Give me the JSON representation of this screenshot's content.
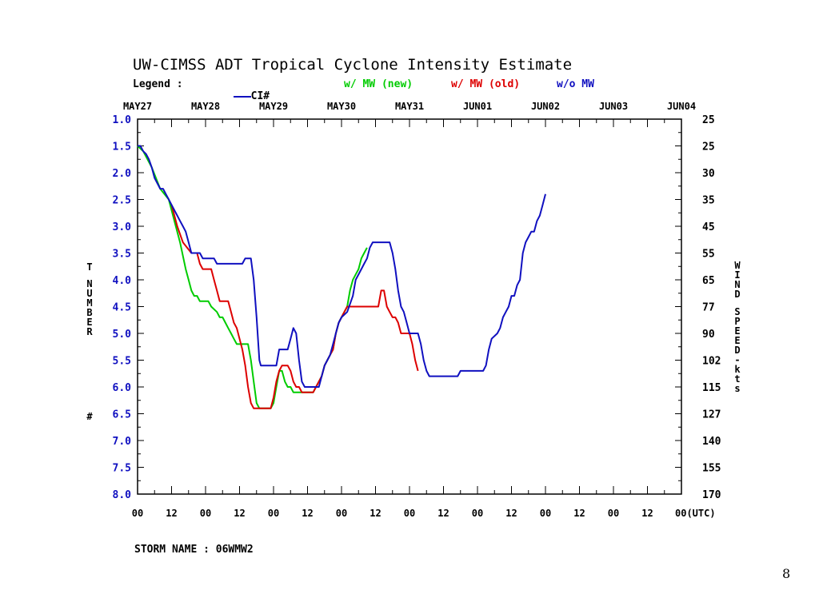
{
  "title": "UW-CIMSS ADT Tropical Cyclone Intensity Estimate",
  "legend": {
    "label": "Legend :",
    "entries": [
      {
        "text": "CI#",
        "color": "#1010c0"
      },
      {
        "text": "w/ MW (new)",
        "color": "#00cc00"
      },
      {
        "text": "w/ MW (old)",
        "color": "#dd0000"
      },
      {
        "text": "w/o MW",
        "color": "#1010c0"
      }
    ]
  },
  "storm_name": "STORM NAME : 06WMW2",
  "page_number": "8",
  "chart_data": {
    "type": "line",
    "title": "UW-CIMSS ADT Tropical Cyclone Intensity Estimate",
    "ylabel_left": "T NUMBER #",
    "ylabel_right": "WIND SPEED-kts",
    "xlabel": "(UTC)",
    "top_dates": [
      "MAY27",
      "MAY28",
      "MAY29",
      "MAY30",
      "MAY31",
      "JUN01",
      "JUN02",
      "JUN03",
      "JUN04"
    ],
    "bottom_hours": [
      "00",
      "12",
      "00",
      "12",
      "00",
      "12",
      "00",
      "12",
      "00",
      "12",
      "00",
      "12",
      "00",
      "12",
      "00",
      "12",
      "00(UTC)"
    ],
    "xlim_hours": [
      0,
      192
    ],
    "ylim": [
      1.0,
      8.0
    ],
    "y_inverted": true,
    "left_ticks": [
      "1.0",
      "1.5",
      "2.0",
      "2.5",
      "3.0",
      "3.5",
      "4.0",
      "4.5",
      "5.0",
      "5.5",
      "6.0",
      "6.5",
      "7.0",
      "7.5",
      "8.0"
    ],
    "right_ticks": [
      "25",
      "25",
      "30",
      "35",
      "45",
      "55",
      "65",
      "77",
      "90",
      "102",
      "115",
      "127",
      "140",
      "155",
      "170"
    ],
    "series": [
      {
        "name": "w/o MW",
        "color": "#1010c0",
        "points": [
          [
            0,
            1.5
          ],
          [
            1,
            1.5
          ],
          [
            2,
            1.6
          ],
          [
            3,
            1.65
          ],
          [
            4,
            1.75
          ],
          [
            5,
            1.9
          ],
          [
            6,
            2.1
          ],
          [
            7,
            2.2
          ],
          [
            8,
            2.3
          ],
          [
            9,
            2.3
          ],
          [
            10,
            2.4
          ],
          [
            11,
            2.5
          ],
          [
            12,
            2.6
          ],
          [
            13,
            2.7
          ],
          [
            14,
            2.8
          ],
          [
            15,
            2.9
          ],
          [
            16,
            3.0
          ],
          [
            17,
            3.1
          ],
          [
            18,
            3.3
          ],
          [
            19,
            3.5
          ],
          [
            22,
            3.5
          ],
          [
            23,
            3.6
          ],
          [
            27,
            3.6
          ],
          [
            28,
            3.7
          ],
          [
            37,
            3.7
          ],
          [
            38,
            3.6
          ],
          [
            40,
            3.6
          ],
          [
            41,
            4.0
          ],
          [
            42,
            4.7
          ],
          [
            43,
            5.5
          ],
          [
            43.5,
            5.6
          ],
          [
            49,
            5.6
          ],
          [
            50,
            5.3
          ],
          [
            53,
            5.3
          ],
          [
            54,
            5.1
          ],
          [
            55,
            4.9
          ],
          [
            56,
            5.0
          ],
          [
            57,
            5.5
          ],
          [
            58,
            5.9
          ],
          [
            59,
            6.0
          ],
          [
            64,
            6.0
          ],
          [
            65,
            5.8
          ],
          [
            66,
            5.6
          ],
          [
            67,
            5.5
          ],
          [
            68,
            5.4
          ],
          [
            69,
            5.2
          ],
          [
            70,
            5.0
          ],
          [
            71,
            4.8
          ],
          [
            72,
            4.7
          ],
          [
            74,
            4.6
          ],
          [
            76,
            4.3
          ],
          [
            77,
            4.0
          ],
          [
            79,
            3.8
          ],
          [
            80,
            3.7
          ],
          [
            81,
            3.6
          ],
          [
            82,
            3.4
          ],
          [
            83,
            3.3
          ],
          [
            89,
            3.3
          ],
          [
            90,
            3.5
          ],
          [
            91,
            3.8
          ],
          [
            92,
            4.2
          ],
          [
            93,
            4.5
          ],
          [
            94,
            4.6
          ],
          [
            95,
            4.8
          ],
          [
            96,
            5.0
          ],
          [
            99,
            5.0
          ],
          [
            100,
            5.2
          ],
          [
            101,
            5.5
          ],
          [
            102,
            5.7
          ],
          [
            103,
            5.8
          ],
          [
            113,
            5.8
          ],
          [
            114,
            5.7
          ],
          [
            122,
            5.7
          ],
          [
            123,
            5.6
          ],
          [
            124,
            5.3
          ],
          [
            125,
            5.1
          ],
          [
            127,
            5.0
          ],
          [
            128,
            4.9
          ],
          [
            129,
            4.7
          ],
          [
            130,
            4.6
          ],
          [
            131,
            4.5
          ],
          [
            132,
            4.3
          ],
          [
            133,
            4.3
          ],
          [
            134,
            4.1
          ],
          [
            135,
            4.0
          ],
          [
            136,
            3.5
          ],
          [
            137,
            3.3
          ],
          [
            138,
            3.2
          ],
          [
            139,
            3.1
          ],
          [
            140,
            3.1
          ],
          [
            141,
            2.9
          ],
          [
            142,
            2.8
          ],
          [
            143,
            2.6
          ],
          [
            144,
            2.4
          ]
        ]
      },
      {
        "name": "w/ MW (new)",
        "color": "#00cc00",
        "points": [
          [
            0,
            1.5
          ],
          [
            2,
            1.6
          ],
          [
            5,
            1.9
          ],
          [
            8,
            2.3
          ],
          [
            11,
            2.5
          ],
          [
            13,
            2.9
          ],
          [
            15,
            3.3
          ],
          [
            17,
            3.8
          ],
          [
            18,
            4.0
          ],
          [
            19,
            4.2
          ],
          [
            20,
            4.3
          ],
          [
            21,
            4.3
          ],
          [
            22,
            4.4
          ],
          [
            25,
            4.4
          ],
          [
            26,
            4.5
          ],
          [
            28,
            4.6
          ],
          [
            29,
            4.7
          ],
          [
            30,
            4.7
          ],
          [
            31,
            4.8
          ],
          [
            32,
            4.9
          ],
          [
            33,
            5.0
          ],
          [
            34,
            5.1
          ],
          [
            35,
            5.2
          ],
          [
            39,
            5.2
          ],
          [
            40,
            5.5
          ],
          [
            41,
            5.9
          ],
          [
            42,
            6.3
          ],
          [
            43,
            6.4
          ],
          [
            47,
            6.4
          ],
          [
            48,
            6.3
          ],
          [
            49,
            6.0
          ],
          [
            50,
            5.7
          ],
          [
            51,
            5.7
          ],
          [
            52,
            5.9
          ],
          [
            53,
            6.0
          ],
          [
            54,
            6.0
          ],
          [
            55,
            6.1
          ],
          [
            56,
            6.1
          ],
          [
            62,
            6.1
          ],
          [
            63,
            6.0
          ],
          [
            64,
            5.9
          ],
          [
            65,
            5.8
          ],
          [
            66,
            5.6
          ],
          [
            67,
            5.5
          ],
          [
            68,
            5.4
          ],
          [
            69,
            5.3
          ],
          [
            70,
            5.0
          ],
          [
            71,
            4.8
          ],
          [
            72,
            4.7
          ],
          [
            74,
            4.5
          ],
          [
            75,
            4.2
          ],
          [
            76,
            4.0
          ],
          [
            77,
            3.9
          ],
          [
            78,
            3.8
          ],
          [
            79,
            3.6
          ],
          [
            80,
            3.5
          ],
          [
            81,
            3.4
          ]
        ]
      },
      {
        "name": "w/ MW (old)",
        "color": "#dd0000",
        "points": [
          [
            12,
            2.6
          ],
          [
            14,
            3.0
          ],
          [
            16,
            3.3
          ],
          [
            19,
            3.5
          ],
          [
            21,
            3.5
          ],
          [
            22,
            3.7
          ],
          [
            23,
            3.8
          ],
          [
            26,
            3.8
          ],
          [
            27,
            4.0
          ],
          [
            28,
            4.2
          ],
          [
            29,
            4.4
          ],
          [
            32,
            4.4
          ],
          [
            33,
            4.6
          ],
          [
            34,
            4.8
          ],
          [
            35,
            4.9
          ],
          [
            36,
            5.1
          ],
          [
            37,
            5.3
          ],
          [
            38,
            5.6
          ],
          [
            39,
            6.0
          ],
          [
            40,
            6.3
          ],
          [
            41,
            6.4
          ],
          [
            47,
            6.4
          ],
          [
            48,
            6.2
          ],
          [
            49,
            5.9
          ],
          [
            50,
            5.7
          ],
          [
            51,
            5.6
          ],
          [
            53,
            5.6
          ],
          [
            54,
            5.7
          ],
          [
            55,
            5.9
          ],
          [
            56,
            6.0
          ],
          [
            57,
            6.0
          ],
          [
            58,
            6.1
          ],
          [
            62,
            6.1
          ],
          [
            63,
            6.0
          ],
          [
            64,
            5.9
          ],
          [
            65,
            5.8
          ],
          [
            66,
            5.6
          ],
          [
            67,
            5.5
          ],
          [
            68,
            5.4
          ],
          [
            69,
            5.3
          ],
          [
            70,
            5.0
          ],
          [
            71,
            4.8
          ],
          [
            72,
            4.7
          ],
          [
            73,
            4.6
          ],
          [
            74,
            4.5
          ],
          [
            85,
            4.5
          ],
          [
            86,
            4.2
          ],
          [
            87,
            4.2
          ],
          [
            88,
            4.5
          ],
          [
            89,
            4.6
          ],
          [
            90,
            4.7
          ],
          [
            91,
            4.7
          ],
          [
            92,
            4.8
          ],
          [
            93,
            5.0
          ],
          [
            96,
            5.0
          ],
          [
            97,
            5.2
          ],
          [
            98,
            5.5
          ],
          [
            99,
            5.7
          ]
        ]
      }
    ]
  }
}
